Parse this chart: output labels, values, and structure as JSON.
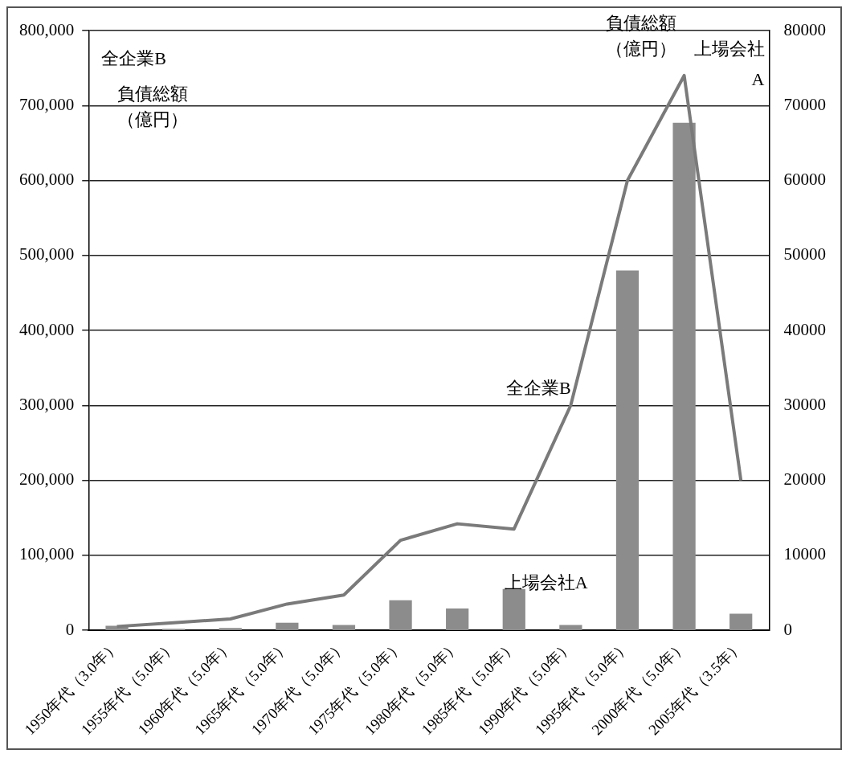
{
  "chart_data": {
    "type": "bar",
    "ylabel": "負債総額（億円）",
    "y2label": "負債総額（億円）",
    "annotations": [
      "全企業B",
      "上場会社A"
    ],
    "categories": [
      "1950年代（3.0年）",
      "1955年代（5.0年）",
      "1960年代（5.0年）",
      "1965年代（5.0年）",
      "1970年代（5.0年）",
      "1975年代（5.0年）",
      "1980年代（5.0年）",
      "1985年代（5.0年）",
      "1990年代（5.0年）",
      "1995年代（5.0年）",
      "2000年代（5.0年）",
      "2005年代（3.5年）"
    ],
    "series": [
      {
        "name": "上場会社A",
        "axis": "y2",
        "color": "#8c8c8c",
        "values": [
          600,
          200,
          300,
          1000,
          700,
          4000,
          2900,
          5500,
          700,
          48000,
          67700,
          2200
        ]
      },
      {
        "name": "全企業B",
        "type": "line",
        "color": "#7a7a7a",
        "values": [
          5000,
          10000,
          15000,
          35000,
          47000,
          120000,
          142000,
          135000,
          300000,
          600000,
          740000,
          200000
        ]
      }
    ],
    "ylim": [
      0,
      800000
    ],
    "yticks": [
      {
        "value": 0,
        "label": "0"
      },
      {
        "value": 100000,
        "label": "100,000"
      },
      {
        "value": 200000,
        "label": "200,000"
      },
      {
        "value": 300000,
        "label": "300,000"
      },
      {
        "value": 400000,
        "label": "400,000"
      },
      {
        "value": 500000,
        "label": "500,000"
      },
      {
        "value": 600000,
        "label": "600,000"
      },
      {
        "value": 700000,
        "label": "700,000"
      },
      {
        "value": 800000,
        "label": "800,000"
      }
    ],
    "y2lim": [
      0,
      80000
    ],
    "y2ticks": [
      0,
      10000,
      20000,
      30000,
      40000,
      50000,
      60000,
      70000,
      80000
    ],
    "grid": "y",
    "legend": false,
    "marker": "none",
    "line_style": "solid"
  }
}
